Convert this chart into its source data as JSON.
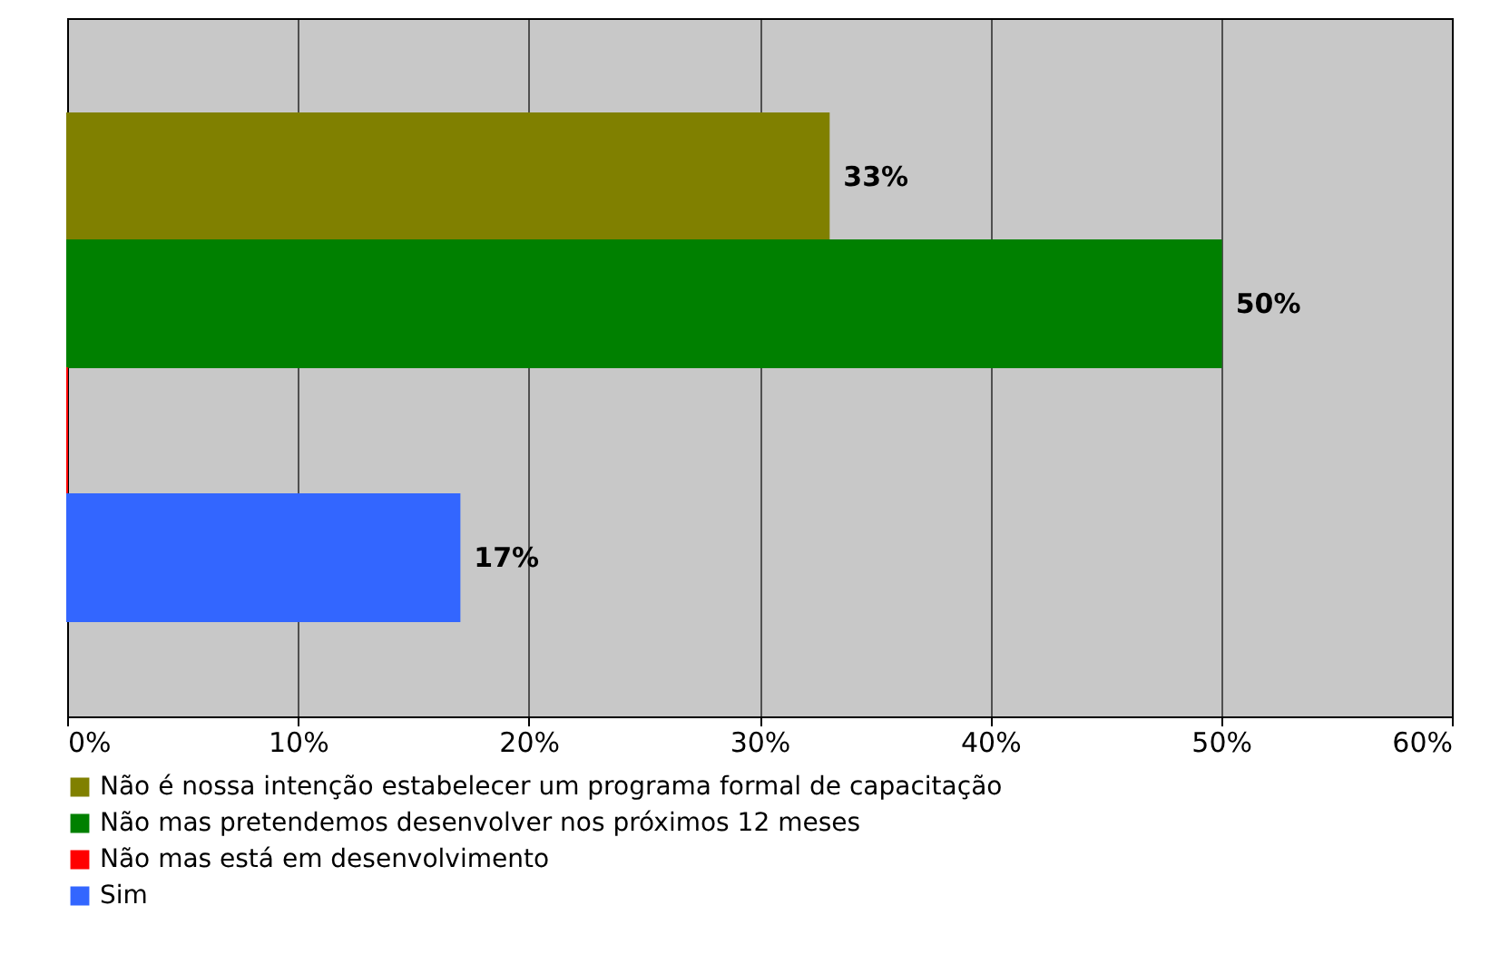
{
  "chart_data": {
    "type": "bar",
    "orientation": "horizontal",
    "categories": [
      null
    ],
    "series": [
      {
        "name": "Não é nossa intenção estabelecer um programa formal de capacitação",
        "color": "#808000",
        "values": [
          33
        ],
        "value_labels": [
          "33%"
        ]
      },
      {
        "name": "Não mas pretendemos desenvolver nos próximos 12 meses",
        "color": "#008000",
        "values": [
          50
        ],
        "value_labels": [
          "50%"
        ]
      },
      {
        "name": "Não mas está em desenvolvimento",
        "color": "#ff0000",
        "values": [
          0
        ],
        "value_labels": [
          null
        ]
      },
      {
        "name": "Sim",
        "color": "#3366ff",
        "values": [
          17
        ],
        "value_labels": [
          "17%"
        ]
      }
    ],
    "xlim": [
      0,
      60
    ],
    "xticks": [
      {
        "value": 0,
        "label": "0%"
      },
      {
        "value": 10,
        "label": "10%"
      },
      {
        "value": 20,
        "label": "20%"
      },
      {
        "value": 30,
        "label": "30%"
      },
      {
        "value": 40,
        "label": "40%"
      },
      {
        "value": 50,
        "label": "50%"
      },
      {
        "value": 60,
        "label": "60%"
      }
    ],
    "grid": "x",
    "legend": "bottom"
  }
}
